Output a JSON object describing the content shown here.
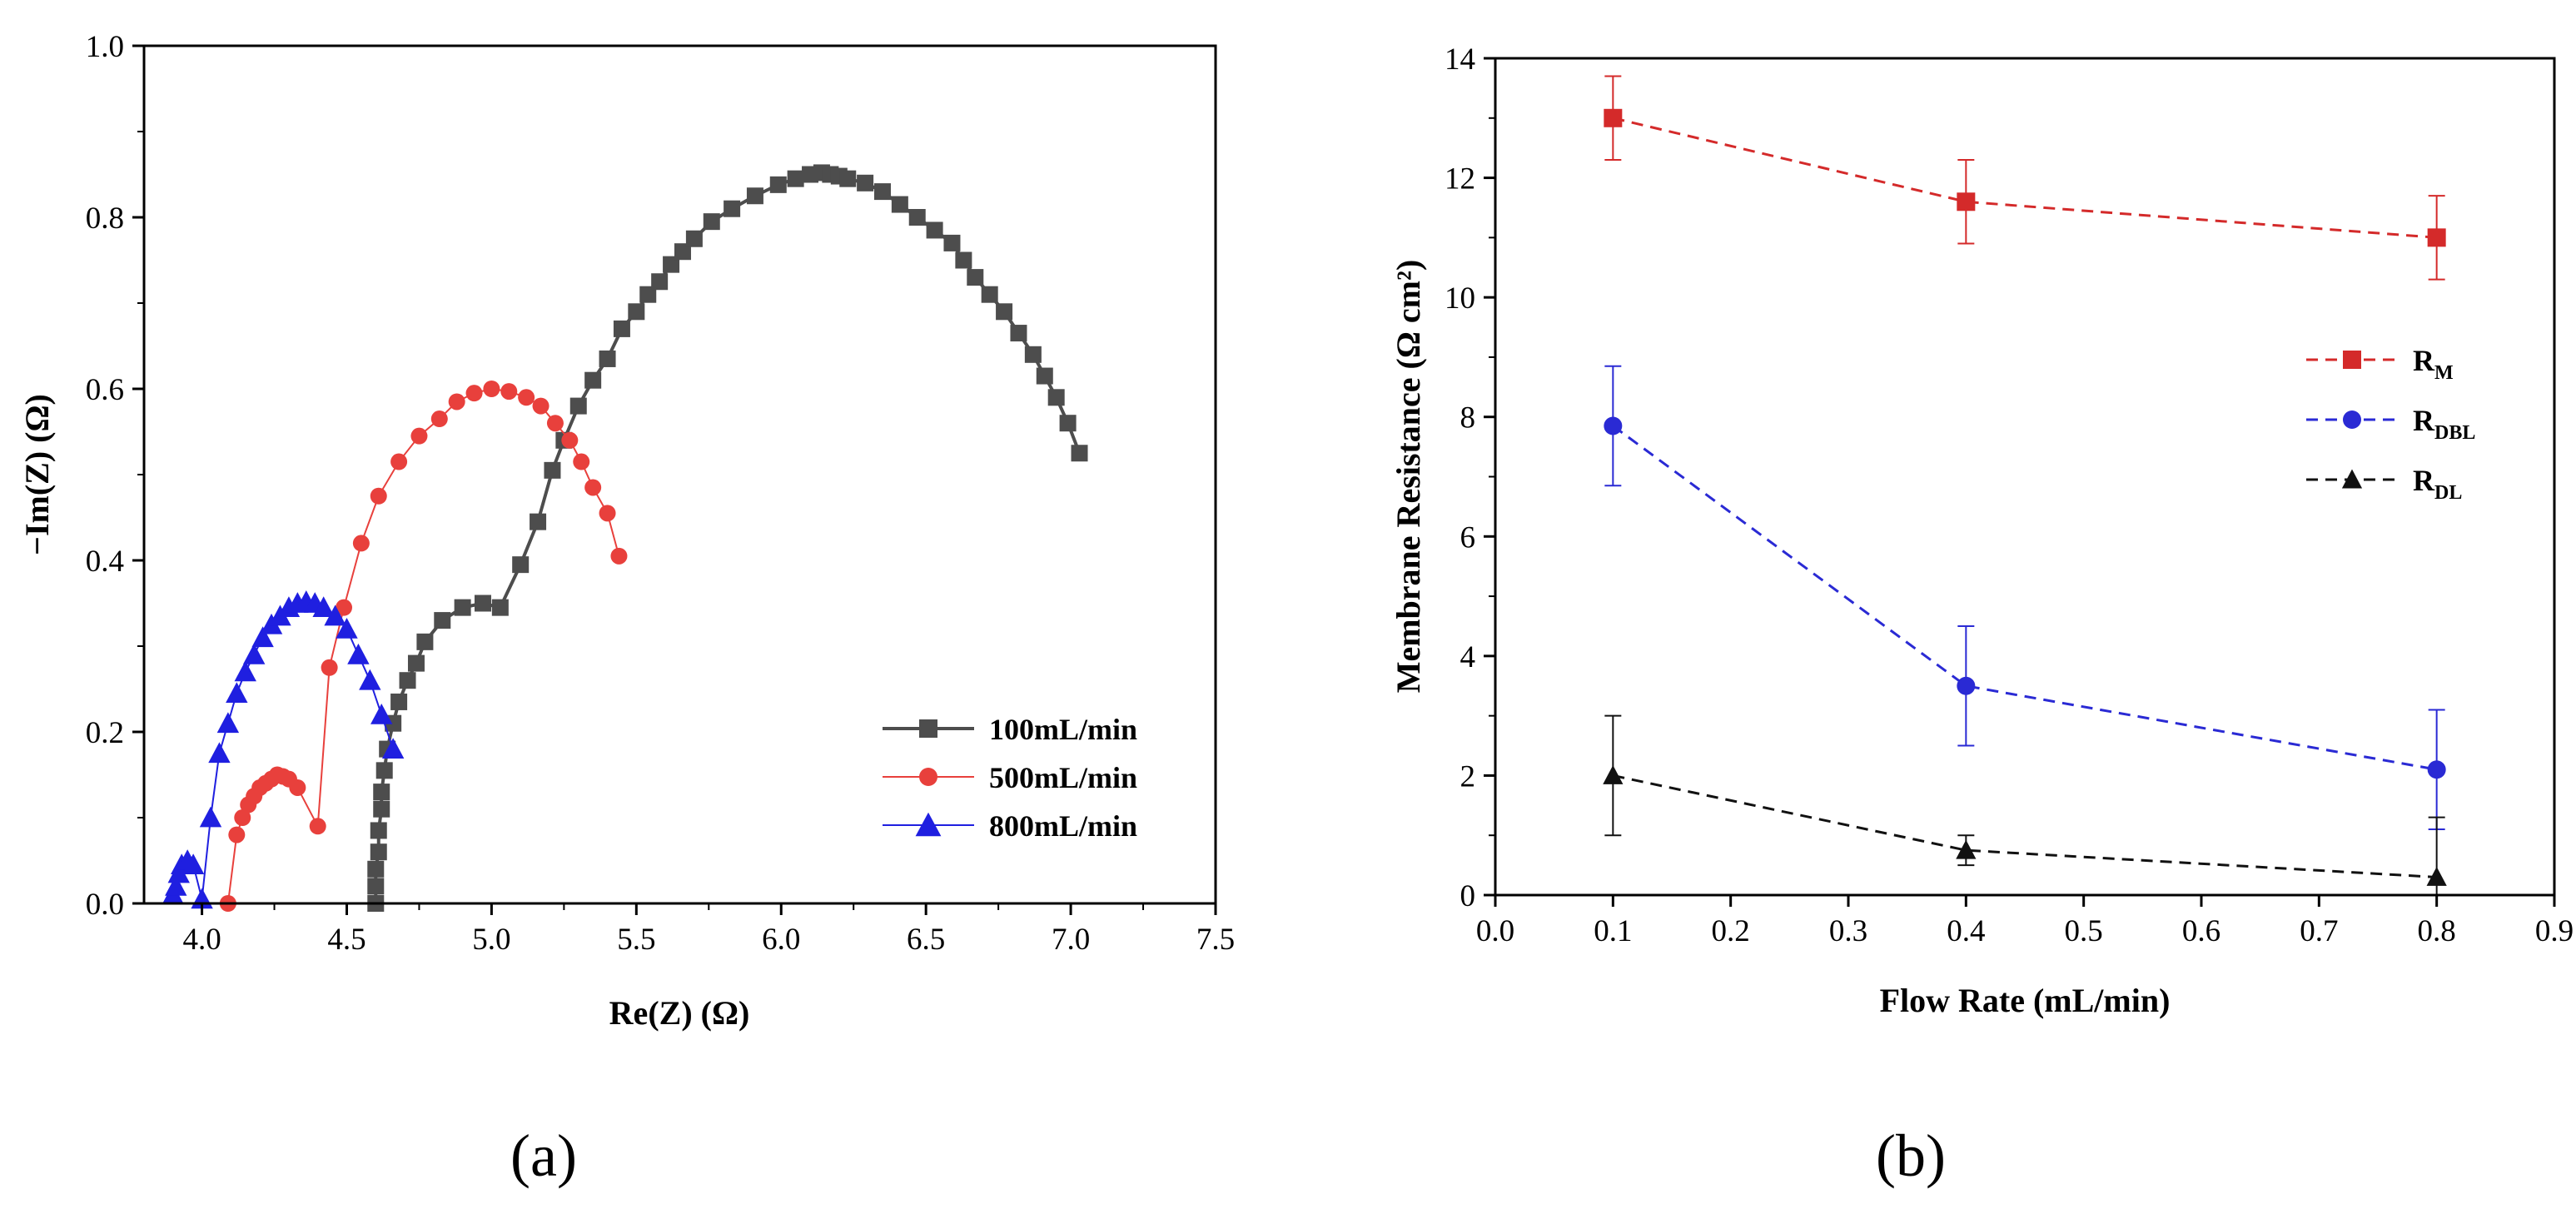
{
  "chart_data": [
    {
      "type": "scatter",
      "panel_label": "(a)",
      "xlabel": "Re(Z) (Ω)",
      "ylabel": "−Im(Z) (Ω)",
      "xlim": [
        3.8,
        7.5
      ],
      "ylim": [
        0.0,
        1.0
      ],
      "xticks": [
        "4.0",
        "4.5",
        "5.0",
        "5.5",
        "6.0",
        "6.5",
        "7.0",
        "7.5"
      ],
      "yticks": [
        "0.0",
        "0.2",
        "0.4",
        "0.6",
        "0.8",
        "1.0"
      ],
      "legend_position": "bottom-right",
      "series": [
        {
          "name": "100mL/min",
          "color": "#4d4d4d",
          "marker": "square",
          "x": [
            4.6,
            4.6,
            4.6,
            4.61,
            4.61,
            4.62,
            4.62,
            4.63,
            4.64,
            4.66,
            4.68,
            4.71,
            4.74,
            4.77,
            4.83,
            4.9,
            4.97,
            5.03,
            5.1,
            5.16,
            5.21,
            5.25,
            5.3,
            5.35,
            5.4,
            5.45,
            5.5,
            5.54,
            5.58,
            5.62,
            5.66,
            5.7,
            5.76,
            5.83,
            5.91,
            5.99,
            6.05,
            6.1,
            6.14,
            6.17,
            6.2,
            6.23,
            6.29,
            6.35,
            6.41,
            6.47,
            6.53,
            6.59,
            6.63,
            6.67,
            6.72,
            6.77,
            6.82,
            6.87,
            6.91,
            6.95,
            6.99,
            7.03
          ],
          "y": [
            0.0,
            0.02,
            0.04,
            0.06,
            0.085,
            0.11,
            0.13,
            0.155,
            0.18,
            0.21,
            0.235,
            0.26,
            0.28,
            0.305,
            0.33,
            0.345,
            0.35,
            0.345,
            0.395,
            0.445,
            0.505,
            0.54,
            0.58,
            0.61,
            0.635,
            0.67,
            0.69,
            0.71,
            0.725,
            0.745,
            0.76,
            0.775,
            0.795,
            0.81,
            0.825,
            0.838,
            0.845,
            0.85,
            0.852,
            0.85,
            0.848,
            0.845,
            0.84,
            0.83,
            0.815,
            0.8,
            0.785,
            0.77,
            0.75,
            0.73,
            0.71,
            0.69,
            0.665,
            0.64,
            0.615,
            0.59,
            0.56,
            0.525
          ]
        },
        {
          "name": "500mL/min",
          "color": "#e8403c",
          "marker": "circle",
          "x": [
            4.09,
            4.12,
            4.14,
            4.16,
            4.18,
            4.2,
            4.22,
            4.24,
            4.26,
            4.28,
            4.3,
            4.33,
            4.4,
            4.44,
            4.49,
            4.55,
            4.61,
            4.68,
            4.75,
            4.82,
            4.88,
            4.94,
            5.0,
            5.06,
            5.12,
            5.17,
            5.22,
            5.27,
            5.31,
            5.35,
            5.4,
            5.44
          ],
          "y": [
            0.0,
            0.08,
            0.1,
            0.115,
            0.125,
            0.135,
            0.14,
            0.145,
            0.15,
            0.148,
            0.145,
            0.135,
            0.09,
            0.275,
            0.345,
            0.42,
            0.475,
            0.515,
            0.545,
            0.565,
            0.585,
            0.595,
            0.6,
            0.597,
            0.59,
            0.58,
            0.56,
            0.54,
            0.515,
            0.485,
            0.455,
            0.405
          ]
        },
        {
          "name": "800mL/min",
          "color": "#1f1fe0",
          "marker": "triangle",
          "x": [
            3.9,
            3.91,
            3.92,
            3.93,
            3.95,
            3.97,
            4.0,
            4.03,
            4.06,
            4.09,
            4.12,
            4.15,
            4.18,
            4.21,
            4.24,
            4.27,
            4.3,
            4.33,
            4.36,
            4.39,
            4.42,
            4.46,
            4.5,
            4.54,
            4.58,
            4.62,
            4.66
          ],
          "y": [
            0.01,
            0.02,
            0.035,
            0.045,
            0.05,
            0.045,
            0.005,
            0.1,
            0.175,
            0.21,
            0.245,
            0.27,
            0.29,
            0.31,
            0.325,
            0.335,
            0.345,
            0.35,
            0.352,
            0.35,
            0.345,
            0.335,
            0.32,
            0.29,
            0.26,
            0.22,
            0.18
          ]
        }
      ]
    },
    {
      "type": "line",
      "panel_label": "(b)",
      "xlabel": "Flow Rate (mL/min)",
      "ylabel": "Membrane Resistance (Ω cm²)",
      "xlim": [
        0.0,
        0.9
      ],
      "ylim": [
        0,
        14
      ],
      "xticks": [
        "0.0",
        "0.1",
        "0.2",
        "0.3",
        "0.4",
        "0.5",
        "0.6",
        "0.7",
        "0.8",
        "0.9"
      ],
      "yticks": [
        "0",
        "2",
        "4",
        "6",
        "8",
        "10",
        "12",
        "14"
      ],
      "legend_position": "right",
      "x": [
        0.1,
        0.4,
        0.8
      ],
      "series": [
        {
          "name": "R",
          "subscript": "M",
          "color": "#d42a2a",
          "marker": "square",
          "values": [
            13.0,
            11.6,
            11.0
          ],
          "error": [
            0.7,
            0.7,
            0.7
          ]
        },
        {
          "name": "R",
          "subscript": "DBL",
          "color": "#2a2ad4",
          "marker": "circle",
          "values": [
            7.85,
            3.5,
            2.1
          ],
          "error": [
            1.0,
            1.0,
            1.0
          ]
        },
        {
          "name": "R",
          "subscript": "DL",
          "color": "#111111",
          "marker": "triangle",
          "values": [
            2.0,
            0.75,
            0.3
          ],
          "error": [
            1.0,
            0.25,
            1.0
          ]
        }
      ]
    }
  ]
}
